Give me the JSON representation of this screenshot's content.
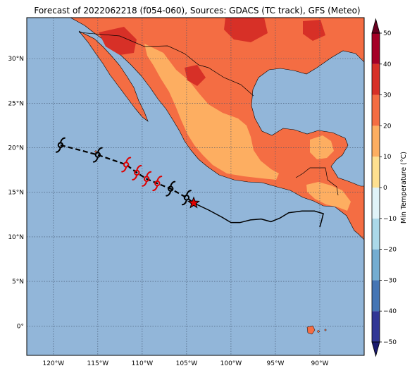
{
  "title": "Forecast of 2022062218 (f054-060), Sources: GDACS (TC track), GFS (Meteo)",
  "map": {
    "lon_range": [
      -123,
      -85
    ],
    "lat_range": [
      -3.3,
      34.6
    ],
    "ocean_color": "#92b6d9",
    "grid": true,
    "lon_ticks": [
      {
        "lon": -120,
        "label": "120°W"
      },
      {
        "lon": -115,
        "label": "115°W"
      },
      {
        "lon": -110,
        "label": "110°W"
      },
      {
        "lon": -105,
        "label": "105°W"
      },
      {
        "lon": -100,
        "label": "100°W"
      },
      {
        "lon": -95,
        "label": "95°W"
      },
      {
        "lon": -90,
        "label": "90°W"
      }
    ],
    "lat_ticks": [
      {
        "lat": 30,
        "label": "30°N"
      },
      {
        "lat": 25,
        "label": "25°N"
      },
      {
        "lat": 20,
        "label": "20°N"
      },
      {
        "lat": 15,
        "label": "15°N"
      },
      {
        "lat": 10,
        "label": "10°N"
      },
      {
        "lat": 5,
        "label": "5°N"
      },
      {
        "lat": 0,
        "label": "0°"
      }
    ]
  },
  "colorbar": {
    "label": "Min Temperature (°C)",
    "ticks": [
      "50",
      "40",
      "30",
      "20",
      "10",
      "0",
      "−10",
      "−20",
      "−30",
      "−40",
      "−50"
    ],
    "bands": [
      "#313695",
      "#4575b4",
      "#74add1",
      "#abd9e9",
      "#e0f3f8",
      "#fee090",
      "#fdae61",
      "#f46d43",
      "#d73027",
      "#a50026"
    ]
  },
  "track": {
    "forecast_points": [
      {
        "lon": -119.2,
        "lat": 20.3,
        "color": "#000000"
      },
      {
        "lon": -115.0,
        "lat": 19.2,
        "color": "#000000"
      },
      {
        "lon": -111.8,
        "lat": 18.1,
        "color": "#dd0000"
      },
      {
        "lon": -110.6,
        "lat": 17.2,
        "color": "#dd0000"
      },
      {
        "lon": -109.5,
        "lat": 16.5,
        "color": "#dd0000"
      },
      {
        "lon": -108.3,
        "lat": 16.0,
        "color": "#dd0000"
      },
      {
        "lon": -106.8,
        "lat": 15.4,
        "color": "#000000"
      },
      {
        "lon": -105.0,
        "lat": 14.4,
        "color": "#000000"
      }
    ],
    "current_position": {
      "lon": -104.2,
      "lat": 13.8
    },
    "past_track": [
      [
        -104.2,
        13.8
      ],
      [
        -102.5,
        13.0
      ],
      [
        -101.0,
        12.2
      ],
      [
        -100.0,
        11.6
      ],
      [
        -99.0,
        11.6
      ],
      [
        -97.8,
        11.9
      ],
      [
        -96.6,
        12.0
      ],
      [
        -95.5,
        11.7
      ],
      [
        -94.5,
        12.1
      ],
      [
        -93.5,
        12.7
      ],
      [
        -92.0,
        12.9
      ],
      [
        -90.6,
        12.9
      ],
      [
        -89.6,
        12.6
      ],
      [
        -89.8,
        11.8
      ],
      [
        -90.0,
        11.1
      ]
    ]
  }
}
